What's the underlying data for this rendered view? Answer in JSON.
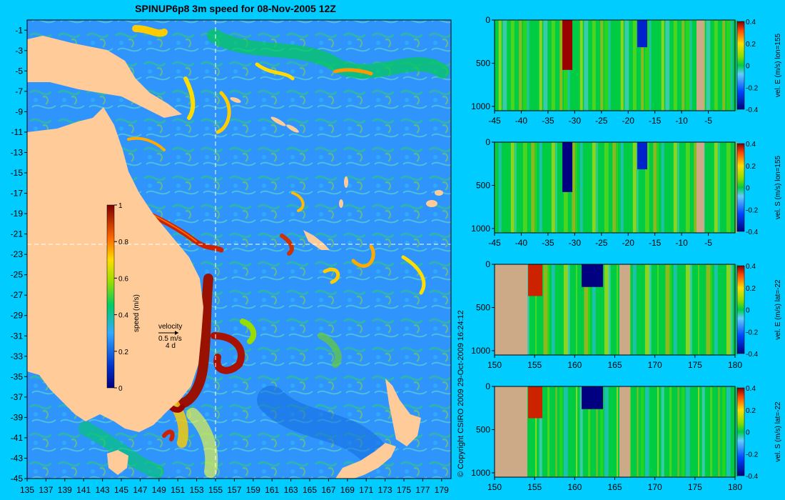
{
  "title": "SPINUP6p8 3m speed for 08-Nov-2005 12Z",
  "copyright": "© Copyright CSIRO 2009   29-Oct-2009 16:24:12",
  "colors": {
    "background": "#00ccff",
    "land": "#ffcc99",
    "panel_land": "#ccaa88"
  },
  "chart_data": [
    {
      "type": "heatmap",
      "name": "map",
      "title": "SPINUP6p8 3m speed for 08-Nov-2005 12Z",
      "xlim": [
        135,
        180
      ],
      "ylim": [
        -45,
        0
      ],
      "xticks": [
        "135",
        "137",
        "139",
        "141",
        "143",
        "145",
        "147",
        "149",
        "151",
        "153",
        "155",
        "157",
        "159",
        "161",
        "163",
        "165",
        "167",
        "169",
        "171",
        "173",
        "175",
        "177",
        "179"
      ],
      "yticks": [
        "-1",
        "-3",
        "-5",
        "-7",
        "-9",
        "-11",
        "-13",
        "-15",
        "-17",
        "-19",
        "-21",
        "-23",
        "-25",
        "-27",
        "-29",
        "-31",
        "-33",
        "-35",
        "-37",
        "-39",
        "-41",
        "-43",
        "-45"
      ],
      "crosshair": {
        "lon": 155,
        "lat": -22
      },
      "colorbar": {
        "label": "speed (m/s)",
        "range": [
          0,
          1
        ],
        "ticks": [
          "1",
          "0.8",
          "0.6",
          "0.4",
          "0.2",
          "0"
        ]
      },
      "legend": {
        "label": "velocity",
        "speed": "0.5 m/s",
        "duration": "4 d"
      }
    },
    {
      "type": "heatmap",
      "name": "panel-1",
      "ylabel": "vel. E (m/s) lon=155",
      "xlim": [
        -45,
        0
      ],
      "xticks": [
        "-45",
        "-40",
        "-35",
        "-30",
        "-25",
        "-20",
        "-15",
        "-10",
        "-5"
      ],
      "yticks": [
        "0",
        "500",
        "1000"
      ],
      "colorbar": {
        "range": [
          -0.4,
          0.4
        ],
        "ticks": [
          "0.4",
          "0.2",
          "0",
          "-0.2",
          "-0.4"
        ]
      }
    },
    {
      "type": "heatmap",
      "name": "panel-2",
      "ylabel": "vel. S (m/s) lon=155",
      "xlim": [
        -45,
        0
      ],
      "xticks": [
        "-45",
        "-40",
        "-35",
        "-30",
        "-25",
        "-20",
        "-15",
        "-10",
        "-5"
      ],
      "yticks": [
        "0",
        "500",
        "1000"
      ],
      "colorbar": {
        "range": [
          -0.4,
          0.4
        ],
        "ticks": [
          "0.4",
          "0.2",
          "0",
          "-0.2",
          "-0.4"
        ]
      }
    },
    {
      "type": "heatmap",
      "name": "panel-3",
      "ylabel": "vel. E (m/s) lat=-22",
      "xlim": [
        150,
        180
      ],
      "xticks": [
        "150",
        "155",
        "160",
        "165",
        "170",
        "175",
        "180"
      ],
      "yticks": [
        "0",
        "500",
        "1000"
      ],
      "colorbar": {
        "range": [
          -0.4,
          0.4
        ],
        "ticks": [
          "0.4",
          "0.2",
          "0",
          "-0.2",
          "-0.4"
        ]
      }
    },
    {
      "type": "heatmap",
      "name": "panel-4",
      "ylabel": "vel. S (m/s) lat=-22",
      "xlim": [
        150,
        180
      ],
      "xticks": [
        "150",
        "155",
        "160",
        "165",
        "170",
        "175",
        "180"
      ],
      "yticks": [
        "0",
        "500",
        "1000"
      ],
      "colorbar": {
        "range": [
          -0.4,
          0.4
        ],
        "ticks": [
          "0.4",
          "0.2",
          "0",
          "-0.2",
          "-0.4"
        ]
      }
    }
  ]
}
